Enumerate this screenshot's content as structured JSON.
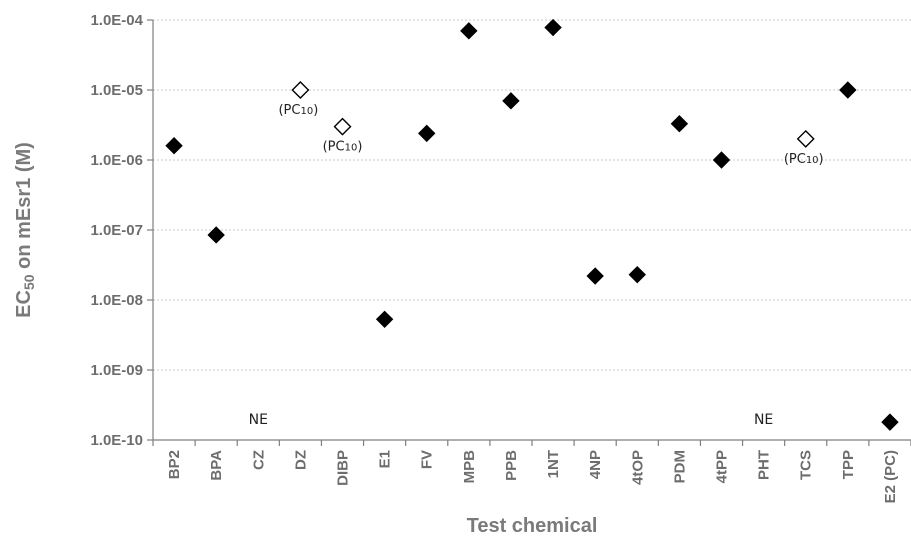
{
  "chart_data": {
    "type": "scatter",
    "xlabel": "Test chemical",
    "ylabel_main": "EC",
    "ylabel_sub": "50",
    "ylabel_rest": " on mEsr1 (M)",
    "y_scale": "log",
    "ylim": [
      1e-10,
      0.0001
    ],
    "grid": true,
    "y_ticks": [
      "1.0E-10",
      "1.0E-09",
      "1.0E-08",
      "1.0E-07",
      "1.0E-06",
      "1.0E-05",
      "1.0E-04"
    ],
    "categories": [
      "BP2",
      "BPA",
      "CZ",
      "DZ",
      "DIBP",
      "E1",
      "FV",
      "MPB",
      "PPB",
      "1NT",
      "4NP",
      "4tOP",
      "PDM",
      "4tPP",
      "PHT",
      "TCS",
      "TPP",
      "E2 (PC)"
    ],
    "series": [
      {
        "marker": "filled-diamond",
        "points": [
          {
            "x": "BP2",
            "y": 1.6e-06
          },
          {
            "x": "BPA",
            "y": 8.5e-08
          },
          {
            "x": "E1",
            "y": 5.3e-09
          },
          {
            "x": "FV",
            "y": 2.4e-06
          },
          {
            "x": "MPB",
            "y": 7e-05
          },
          {
            "x": "PPB",
            "y": 7e-06
          },
          {
            "x": "1NT",
            "y": 7.8e-05
          },
          {
            "x": "4NP",
            "y": 2.2e-08
          },
          {
            "x": "4tOP",
            "y": 2.3e-08
          },
          {
            "x": "PDM",
            "y": 3.3e-06
          },
          {
            "x": "4tPP",
            "y": 1e-06
          },
          {
            "x": "TPP",
            "y": 1e-05
          },
          {
            "x": "E2 (PC)",
            "y": 1.8e-10
          }
        ]
      },
      {
        "marker": "open-diamond",
        "points": [
          {
            "x": "DZ",
            "y": 1e-05
          },
          {
            "x": "DIBP",
            "y": 3e-06
          },
          {
            "x": "TCS",
            "y": 2e-06
          }
        ]
      }
    ],
    "annotations": [
      {
        "at": "DZ",
        "main": "(PC",
        "sub": "10",
        "close": ")"
      },
      {
        "at": "DIBP",
        "main": "(PC",
        "sub": "10",
        "close": ")"
      },
      {
        "at": "TCS",
        "main": "(PC",
        "sub": "10",
        "close": ")"
      }
    ],
    "ne_labels": [
      {
        "at": "CZ",
        "text": "NE"
      },
      {
        "at": "PHT",
        "text": "NE"
      }
    ],
    "colors": {
      "marker": "#000000",
      "grid": "#c8c8c8",
      "axis": "#7f7f7f",
      "label": "#6d6d6d"
    }
  }
}
